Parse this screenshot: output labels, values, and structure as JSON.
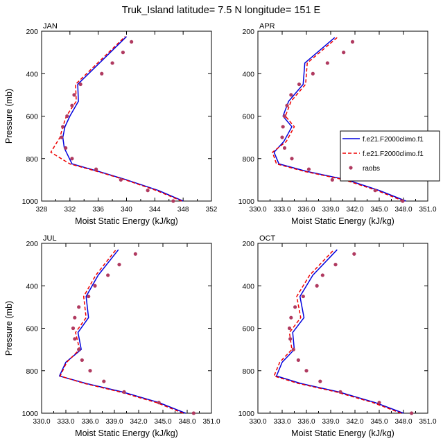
{
  "figure": {
    "title": "Truk_Island  latitude= 7.5 N longitude= 151 E"
  },
  "legend": {
    "entries": [
      {
        "label": "f.e21.F2000climo.f1",
        "color": "#0000dd",
        "style": "solid"
      },
      {
        "label": "f.e21.F2000climo.f1",
        "color": "#ee0000",
        "style": "dashed"
      },
      {
        "label": "raobs",
        "color": "#b03a60",
        "style": "marker"
      }
    ]
  },
  "chart_data": [
    {
      "type": "line",
      "panel_label": "JAN",
      "xlabel": "Moist Static Energy (kJ/kg)",
      "ylabel": "Pressure (mb)",
      "xlim": [
        328,
        352
      ],
      "xticks": [
        "328",
        "332",
        "336",
        "340",
        "344",
        "348",
        "352"
      ],
      "ylim": [
        1000,
        200
      ],
      "yticks": [
        "200",
        "400",
        "600",
        "800",
        "1000"
      ],
      "grid": false,
      "series": [
        {
          "color": "#0000dd",
          "style": "solid",
          "x": [
            348.0,
            344.5,
            340.0,
            336.0,
            332.3,
            331.2,
            331.0,
            331.3,
            332.0,
            333.2,
            333.1,
            340.0
          ],
          "y": [
            1000,
            950,
            900,
            860,
            825,
            750,
            700,
            650,
            600,
            530,
            450,
            225
          ]
        },
        {
          "color": "#ee0000",
          "style": "dashed",
          "x": [
            347.8,
            344.2,
            339.8,
            335.8,
            332.0,
            329.3,
            330.6,
            331.0,
            331.5,
            332.9,
            332.8,
            339.8
          ],
          "y": [
            1000,
            950,
            900,
            860,
            825,
            770,
            700,
            650,
            600,
            530,
            450,
            225
          ]
        },
        {
          "color": "#b03a60",
          "style": "marker",
          "x": [
            346.6,
            343.0,
            339.2,
            335.7,
            332.3,
            331.4,
            330.8,
            331.0,
            331.6,
            332.3,
            332.6,
            333.5,
            336.5,
            338.0,
            339.5,
            340.7
          ],
          "y": [
            1000,
            950,
            900,
            850,
            800,
            750,
            700,
            650,
            600,
            550,
            500,
            450,
            400,
            350,
            300,
            250
          ]
        }
      ]
    },
    {
      "type": "line",
      "panel_label": "APR",
      "xlabel": "Moist Static Energy (kJ/kg)",
      "ylabel": "",
      "xlim": [
        330,
        351
      ],
      "xticks": [
        "330.0",
        "333.0",
        "336.0",
        "339.0",
        "342.0",
        "345.0",
        "348.0",
        "351.0"
      ],
      "ylim": [
        1000,
        200
      ],
      "yticks": [
        "200",
        "400",
        "600",
        "800",
        "1000"
      ],
      "grid": false,
      "series": [
        {
          "color": "#0000dd",
          "style": "solid",
          "x": [
            348.3,
            345.0,
            341.0,
            336.0,
            332.6,
            332.0,
            333.2,
            334.2,
            333.1,
            333.8,
            335.6,
            335.8,
            339.5
          ],
          "y": [
            1000,
            950,
            900,
            860,
            825,
            770,
            720,
            650,
            600,
            530,
            450,
            350,
            230
          ]
        },
        {
          "color": "#ee0000",
          "style": "dashed",
          "x": [
            348.0,
            344.7,
            340.7,
            335.7,
            332.3,
            331.8,
            333.5,
            334.5,
            333.4,
            334.1,
            335.9,
            336.1,
            339.8
          ],
          "y": [
            1000,
            950,
            900,
            860,
            825,
            770,
            720,
            650,
            600,
            530,
            450,
            350,
            230
          ]
        },
        {
          "color": "#b03a60",
          "style": "marker",
          "x": [
            347.9,
            344.5,
            339.2,
            336.3,
            334.2,
            333.3,
            333.0,
            333.1,
            333.3,
            333.6,
            334.1,
            335.1,
            336.8,
            338.6,
            340.6,
            341.7
          ],
          "y": [
            1000,
            950,
            900,
            850,
            800,
            750,
            700,
            650,
            600,
            550,
            500,
            450,
            400,
            350,
            300,
            250
          ]
        }
      ]
    },
    {
      "type": "line",
      "panel_label": "JUL",
      "xlabel": "Moist Static Energy (kJ/kg)",
      "ylabel": "Pressure (mb)",
      "xlim": [
        330,
        351
      ],
      "xticks": [
        "330.0",
        "333.0",
        "336.0",
        "339.0",
        "342.0",
        "345.0",
        "348.0",
        "351.0"
      ],
      "ylim": [
        1000,
        200
      ],
      "yticks": [
        "200",
        "400",
        "600",
        "800",
        "1000"
      ],
      "grid": false,
      "series": [
        {
          "color": "#0000dd",
          "style": "solid",
          "x": [
            347.8,
            344.5,
            340.0,
            335.5,
            332.2,
            333.0,
            334.9,
            334.5,
            335.8,
            335.5,
            337.0,
            339.5
          ],
          "y": [
            1000,
            950,
            900,
            860,
            825,
            760,
            700,
            620,
            550,
            450,
            350,
            230
          ]
        },
        {
          "color": "#ee0000",
          "style": "dashed",
          "x": [
            347.5,
            344.2,
            339.7,
            335.3,
            332.3,
            333.1,
            334.7,
            334.2,
            335.5,
            335.2,
            336.7,
            339.2
          ],
          "y": [
            1000,
            950,
            900,
            860,
            825,
            760,
            700,
            620,
            550,
            450,
            350,
            230
          ]
        },
        {
          "color": "#b03a60",
          "style": "marker",
          "x": [
            348.8,
            344.5,
            340.2,
            337.7,
            336.0,
            335.0,
            334.6,
            334.1,
            333.9,
            334.1,
            334.6,
            335.8,
            336.6,
            338.2,
            339.6,
            341.6
          ],
          "y": [
            1000,
            950,
            900,
            850,
            800,
            750,
            700,
            650,
            600,
            550,
            500,
            450,
            400,
            350,
            300,
            250
          ]
        }
      ]
    },
    {
      "type": "line",
      "panel_label": "OCT",
      "xlabel": "Moist Static Energy (kJ/kg)",
      "ylabel": "",
      "xlim": [
        330,
        351
      ],
      "xticks": [
        "330.0",
        "333.0",
        "336.0",
        "339.0",
        "342.0",
        "345.0",
        "348.0",
        "351.0"
      ],
      "ylim": [
        1000,
        200
      ],
      "yticks": [
        "200",
        "400",
        "600",
        "800",
        "1000"
      ],
      "grid": false,
      "series": [
        {
          "color": "#0000dd",
          "style": "solid",
          "x": [
            348.0,
            344.5,
            340.0,
            335.3,
            332.3,
            333.0,
            334.5,
            334.3,
            335.7,
            335.2,
            336.8,
            339.8
          ],
          "y": [
            1000,
            950,
            900,
            860,
            825,
            760,
            700,
            620,
            550,
            450,
            350,
            230
          ]
        },
        {
          "color": "#ee0000",
          "style": "dashed",
          "x": [
            347.7,
            344.2,
            339.7,
            335.0,
            332.0,
            332.7,
            334.2,
            333.9,
            335.3,
            334.8,
            336.4,
            339.4
          ],
          "y": [
            1000,
            950,
            900,
            860,
            825,
            760,
            700,
            620,
            550,
            450,
            350,
            230
          ]
        },
        {
          "color": "#b03a60",
          "style": "marker",
          "x": [
            349.0,
            345.0,
            340.2,
            337.7,
            336.0,
            335.0,
            334.4,
            334.0,
            333.9,
            334.1,
            334.6,
            335.6,
            337.3,
            338.0,
            339.6,
            341.9
          ],
          "y": [
            1000,
            950,
            900,
            850,
            800,
            750,
            700,
            650,
            600,
            550,
            500,
            450,
            400,
            350,
            300,
            250
          ]
        }
      ]
    }
  ]
}
